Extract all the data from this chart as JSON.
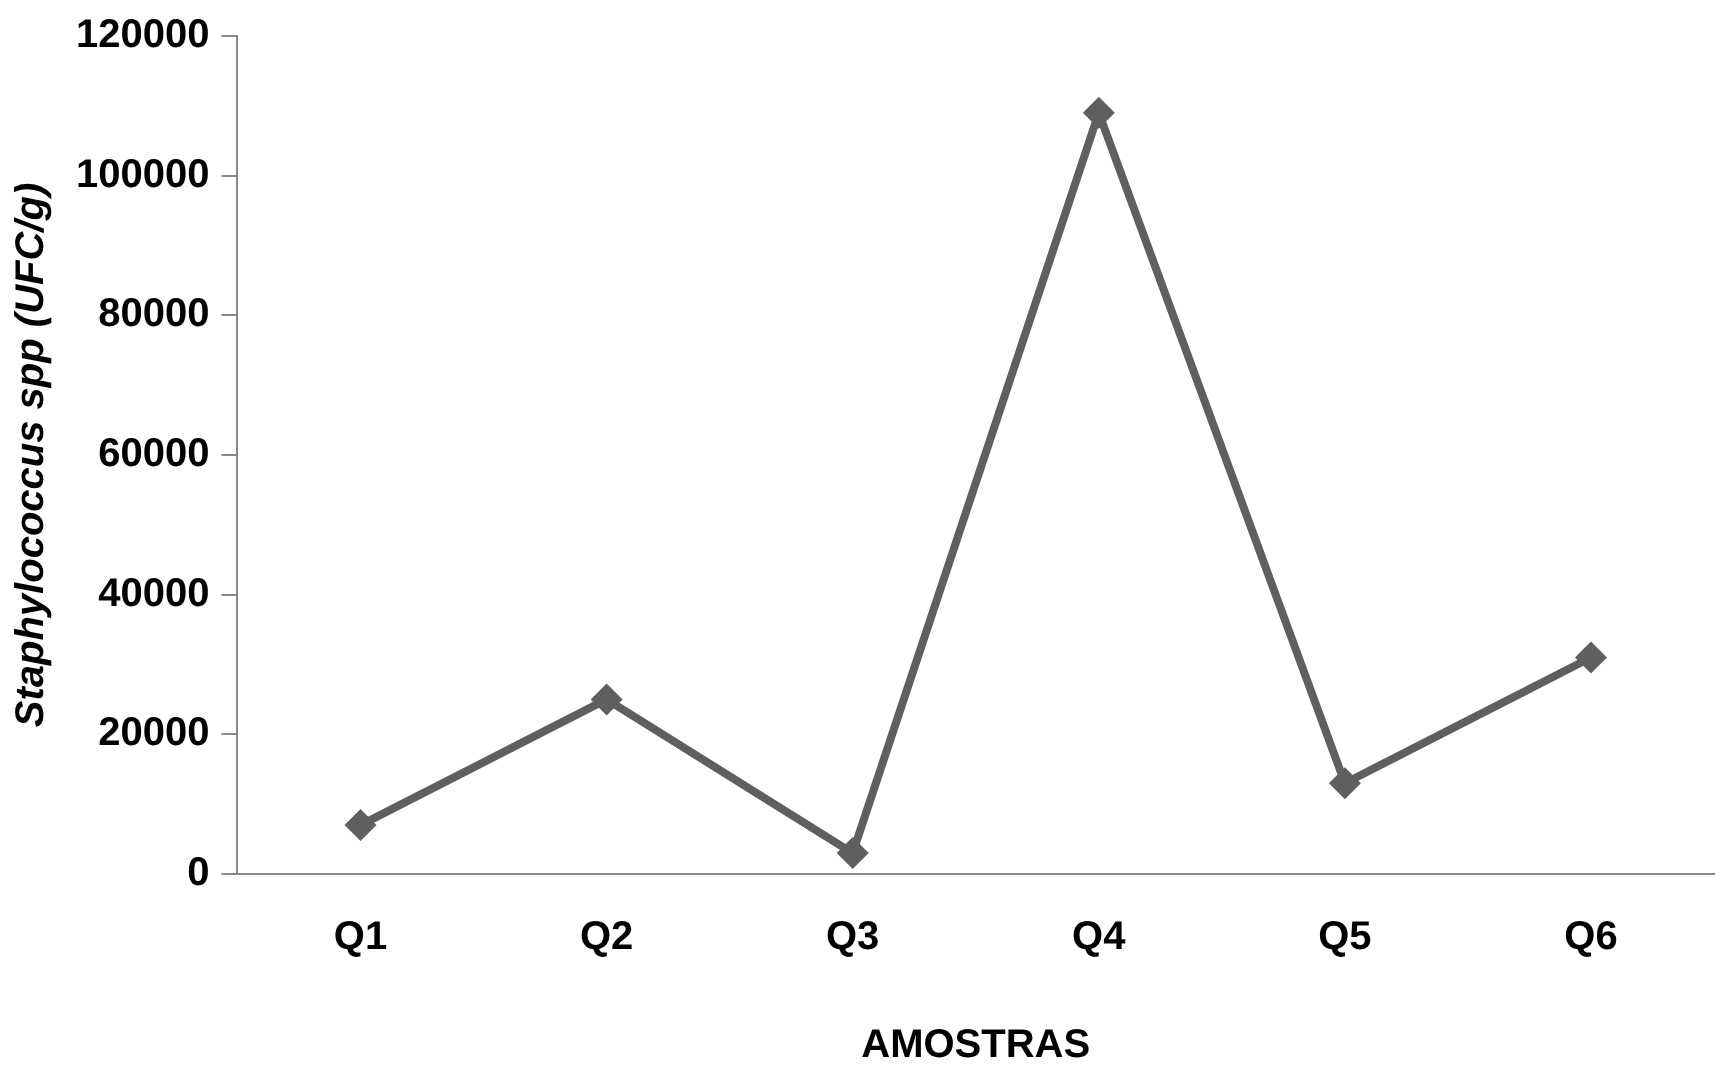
{
  "chart_data": {
    "type": "line",
    "xlabel": "AMOSTRAS",
    "ylabel": "Staphylococcus spp (UFC/g)",
    "categories": [
      "Q1",
      "Q2",
      "Q3",
      "Q4",
      "Q5",
      "Q6"
    ],
    "series": [
      {
        "color": "#5f5f5f",
        "values": [
          7000,
          25000,
          3000,
          109000,
          13000,
          31000
        ]
      }
    ],
    "ylim": [
      0,
      120000
    ],
    "yticks": [
      0,
      20000,
      40000,
      60000,
      80000,
      100000,
      120000
    ],
    "grid": false,
    "legend": false,
    "marker": "diamond",
    "line_style": "solid"
  }
}
